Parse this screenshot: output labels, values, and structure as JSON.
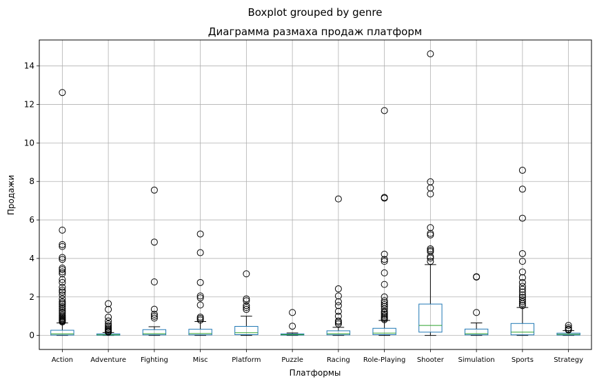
{
  "chart_data": {
    "type": "boxplot",
    "suptitle": "Boxplot grouped by genre",
    "title": "Диаграмма размаха продаж платформ",
    "xlabel": "Платформы",
    "ylabel": "Продажи",
    "ylim": [
      -0.73,
      15.35
    ],
    "yticks": [
      0,
      2,
      4,
      6,
      8,
      10,
      12,
      14
    ],
    "grid": true,
    "colors": {
      "box": "#1f77b4",
      "median": "#2ca02c",
      "whisker": "#000000",
      "grid": "#b0b0b0"
    },
    "categories": [
      "Action",
      "Adventure",
      "Fighting",
      "Misc",
      "Platform",
      "Puzzle",
      "Racing",
      "Role-Playing",
      "Shooter",
      "Simulation",
      "Sports",
      "Strategy"
    ],
    "boxes": [
      {
        "q1": 0.02,
        "median": 0.08,
        "q3": 0.27,
        "whisker_low": 0.0,
        "whisker_high": 0.65,
        "fliers": [
          12.62,
          5.47,
          4.72,
          4.62,
          4.05,
          3.95,
          3.5,
          3.42,
          3.3,
          3.2,
          2.9,
          2.75,
          2.5,
          2.35,
          2.25,
          2.1,
          1.9,
          1.75,
          1.68,
          1.6,
          1.5,
          1.4,
          1.3,
          1.22,
          1.15,
          1.05,
          0.98,
          0.92,
          0.87,
          0.82,
          0.78,
          0.74,
          0.7
        ]
      },
      {
        "q1": 0.01,
        "median": 0.03,
        "q3": 0.08,
        "whisker_low": 0.0,
        "whisker_high": 0.15,
        "fliers": [
          1.65,
          1.35,
          0.95,
          0.75,
          0.6,
          0.5,
          0.42,
          0.35,
          0.3,
          0.25,
          0.2,
          0.17
        ]
      },
      {
        "q1": 0.03,
        "median": 0.09,
        "q3": 0.3,
        "whisker_low": 0.0,
        "whisker_high": 0.45,
        "fliers": [
          7.55,
          4.85,
          2.78,
          1.36,
          1.1,
          1.0,
          0.9
        ]
      },
      {
        "q1": 0.03,
        "median": 0.1,
        "q3": 0.32,
        "whisker_low": 0.0,
        "whisker_high": 0.72,
        "fliers": [
          5.27,
          4.3,
          2.75,
          2.05,
          1.95,
          1.58,
          0.95,
          0.88,
          0.8
        ]
      },
      {
        "q1": 0.04,
        "median": 0.14,
        "q3": 0.47,
        "whisker_low": 0.0,
        "whisker_high": 1.0,
        "fliers": [
          3.2,
          1.9,
          1.8,
          1.55,
          1.45,
          1.35
        ]
      },
      {
        "q1": 0.02,
        "median": 0.04,
        "q3": 0.08,
        "whisker_low": 0.0,
        "whisker_high": 0.13,
        "fliers": [
          1.19,
          0.48
        ]
      },
      {
        "q1": 0.03,
        "median": 0.09,
        "q3": 0.24,
        "whisker_low": 0.0,
        "whisker_high": 0.42,
        "fliers": [
          7.09,
          2.42,
          2.05,
          1.75,
          1.55,
          1.25,
          1.0,
          0.75,
          0.68,
          0.6
        ]
      },
      {
        "q1": 0.04,
        "median": 0.12,
        "q3": 0.37,
        "whisker_low": 0.0,
        "whisker_high": 0.78,
        "fliers": [
          11.68,
          7.17,
          7.13,
          4.22,
          3.95,
          3.85,
          3.25,
          2.65,
          2.0,
          1.8,
          1.7,
          1.6,
          1.5,
          1.38,
          1.25,
          1.18,
          1.1,
          1.02,
          0.95,
          0.88,
          0.82
        ]
      },
      {
        "q1": 0.17,
        "median": 0.52,
        "q3": 1.63,
        "whisker_low": 0.0,
        "whisker_high": 3.68,
        "fliers": [
          14.63,
          7.98,
          7.66,
          7.35,
          5.6,
          5.3,
          5.22,
          4.5,
          4.42,
          4.35,
          4.1,
          4.02,
          3.85
        ]
      },
      {
        "q1": 0.03,
        "median": 0.09,
        "q3": 0.33,
        "whisker_low": 0.0,
        "whisker_high": 0.65,
        "fliers": [
          3.05,
          3.03,
          1.19
        ]
      },
      {
        "q1": 0.03,
        "median": 0.17,
        "q3": 0.62,
        "whisker_low": 0.0,
        "whisker_high": 1.45,
        "fliers": [
          8.58,
          7.6,
          6.09,
          4.25,
          3.85,
          3.3,
          3.0,
          2.75,
          2.55,
          2.4,
          2.25,
          2.1,
          1.98,
          1.85,
          1.75,
          1.65,
          1.55
        ]
      },
      {
        "q1": 0.02,
        "median": 0.06,
        "q3": 0.12,
        "whisker_low": 0.0,
        "whisker_high": 0.25,
        "fliers": [
          0.52,
          0.4,
          0.32,
          0.28
        ]
      }
    ]
  }
}
